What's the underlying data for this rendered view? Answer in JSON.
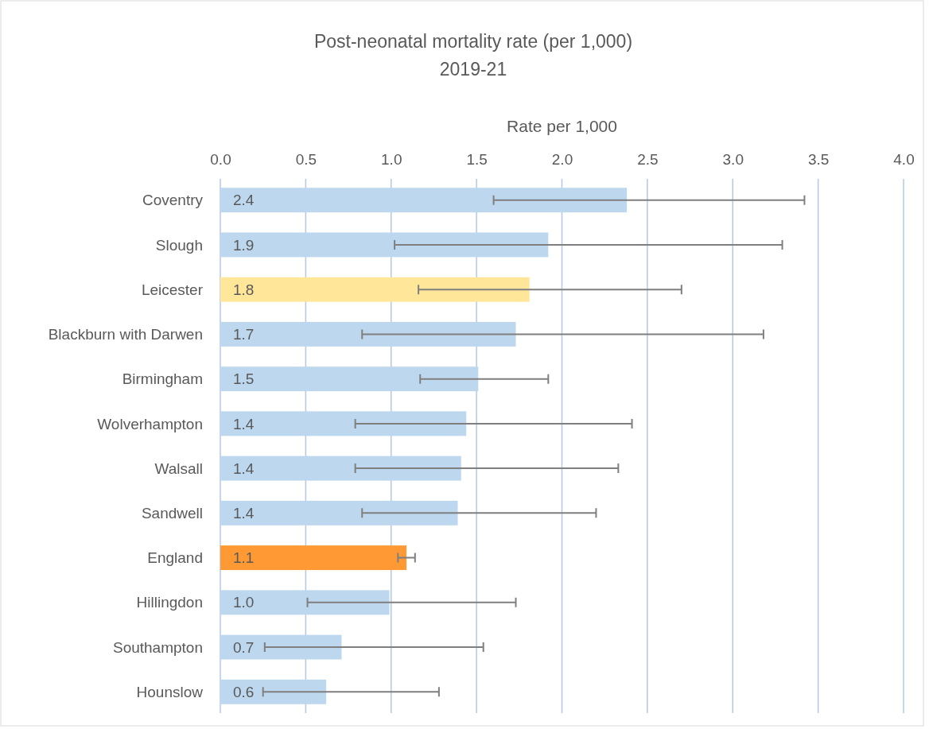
{
  "chart_data": {
    "type": "bar",
    "orientation": "horizontal",
    "title": "Post-neonatal mortality rate (per 1,000)",
    "subtitle": "2019-21",
    "xlabel": "Rate per 1,000",
    "categories": [
      "Coventry",
      "Slough",
      "Leicester",
      "Blackburn with Darwen",
      "Birmingham",
      "Wolverhampton",
      "Walsall",
      "Sandwell",
      "England",
      "Hillingdon",
      "Southampton",
      "Hounslow"
    ],
    "values": [
      2.38,
      1.92,
      1.81,
      1.73,
      1.51,
      1.44,
      1.41,
      1.39,
      1.09,
      0.99,
      0.71,
      0.62
    ],
    "value_labels": [
      "2.4",
      "1.9",
      "1.8",
      "1.7",
      "1.5",
      "1.4",
      "1.4",
      "1.4",
      "1.1",
      "1.0",
      "0.7",
      "0.6"
    ],
    "errors": [
      [
        1.6,
        3.42
      ],
      [
        1.02,
        3.29
      ],
      [
        1.16,
        2.7
      ],
      [
        0.83,
        3.18
      ],
      [
        1.17,
        1.92
      ],
      [
        0.79,
        2.41
      ],
      [
        0.79,
        2.33
      ],
      [
        0.83,
        2.2
      ],
      [
        1.04,
        1.14
      ],
      [
        0.51,
        1.73
      ],
      [
        0.26,
        1.54
      ],
      [
        0.25,
        1.28
      ]
    ],
    "colors": [
      "#bdd7ee",
      "#bdd7ee",
      "#ffe699",
      "#bdd7ee",
      "#bdd7ee",
      "#bdd7ee",
      "#bdd7ee",
      "#bdd7ee",
      "#ff9933",
      "#bdd7ee",
      "#bdd7ee",
      "#bdd7ee"
    ],
    "xlim": [
      0,
      4
    ],
    "xticks": [
      {
        "value": 0,
        "label": "0.0"
      },
      {
        "value": 0.5,
        "label": "0.5"
      },
      {
        "value": 1,
        "label": "1.0"
      },
      {
        "value": 1.5,
        "label": "1.5"
      },
      {
        "value": 2,
        "label": "2.0"
      },
      {
        "value": 2.5,
        "label": "2.5"
      },
      {
        "value": 3,
        "label": "3.0"
      },
      {
        "value": 3.5,
        "label": "3.5"
      },
      {
        "value": 4,
        "label": "4.0"
      }
    ],
    "grid": "x"
  }
}
